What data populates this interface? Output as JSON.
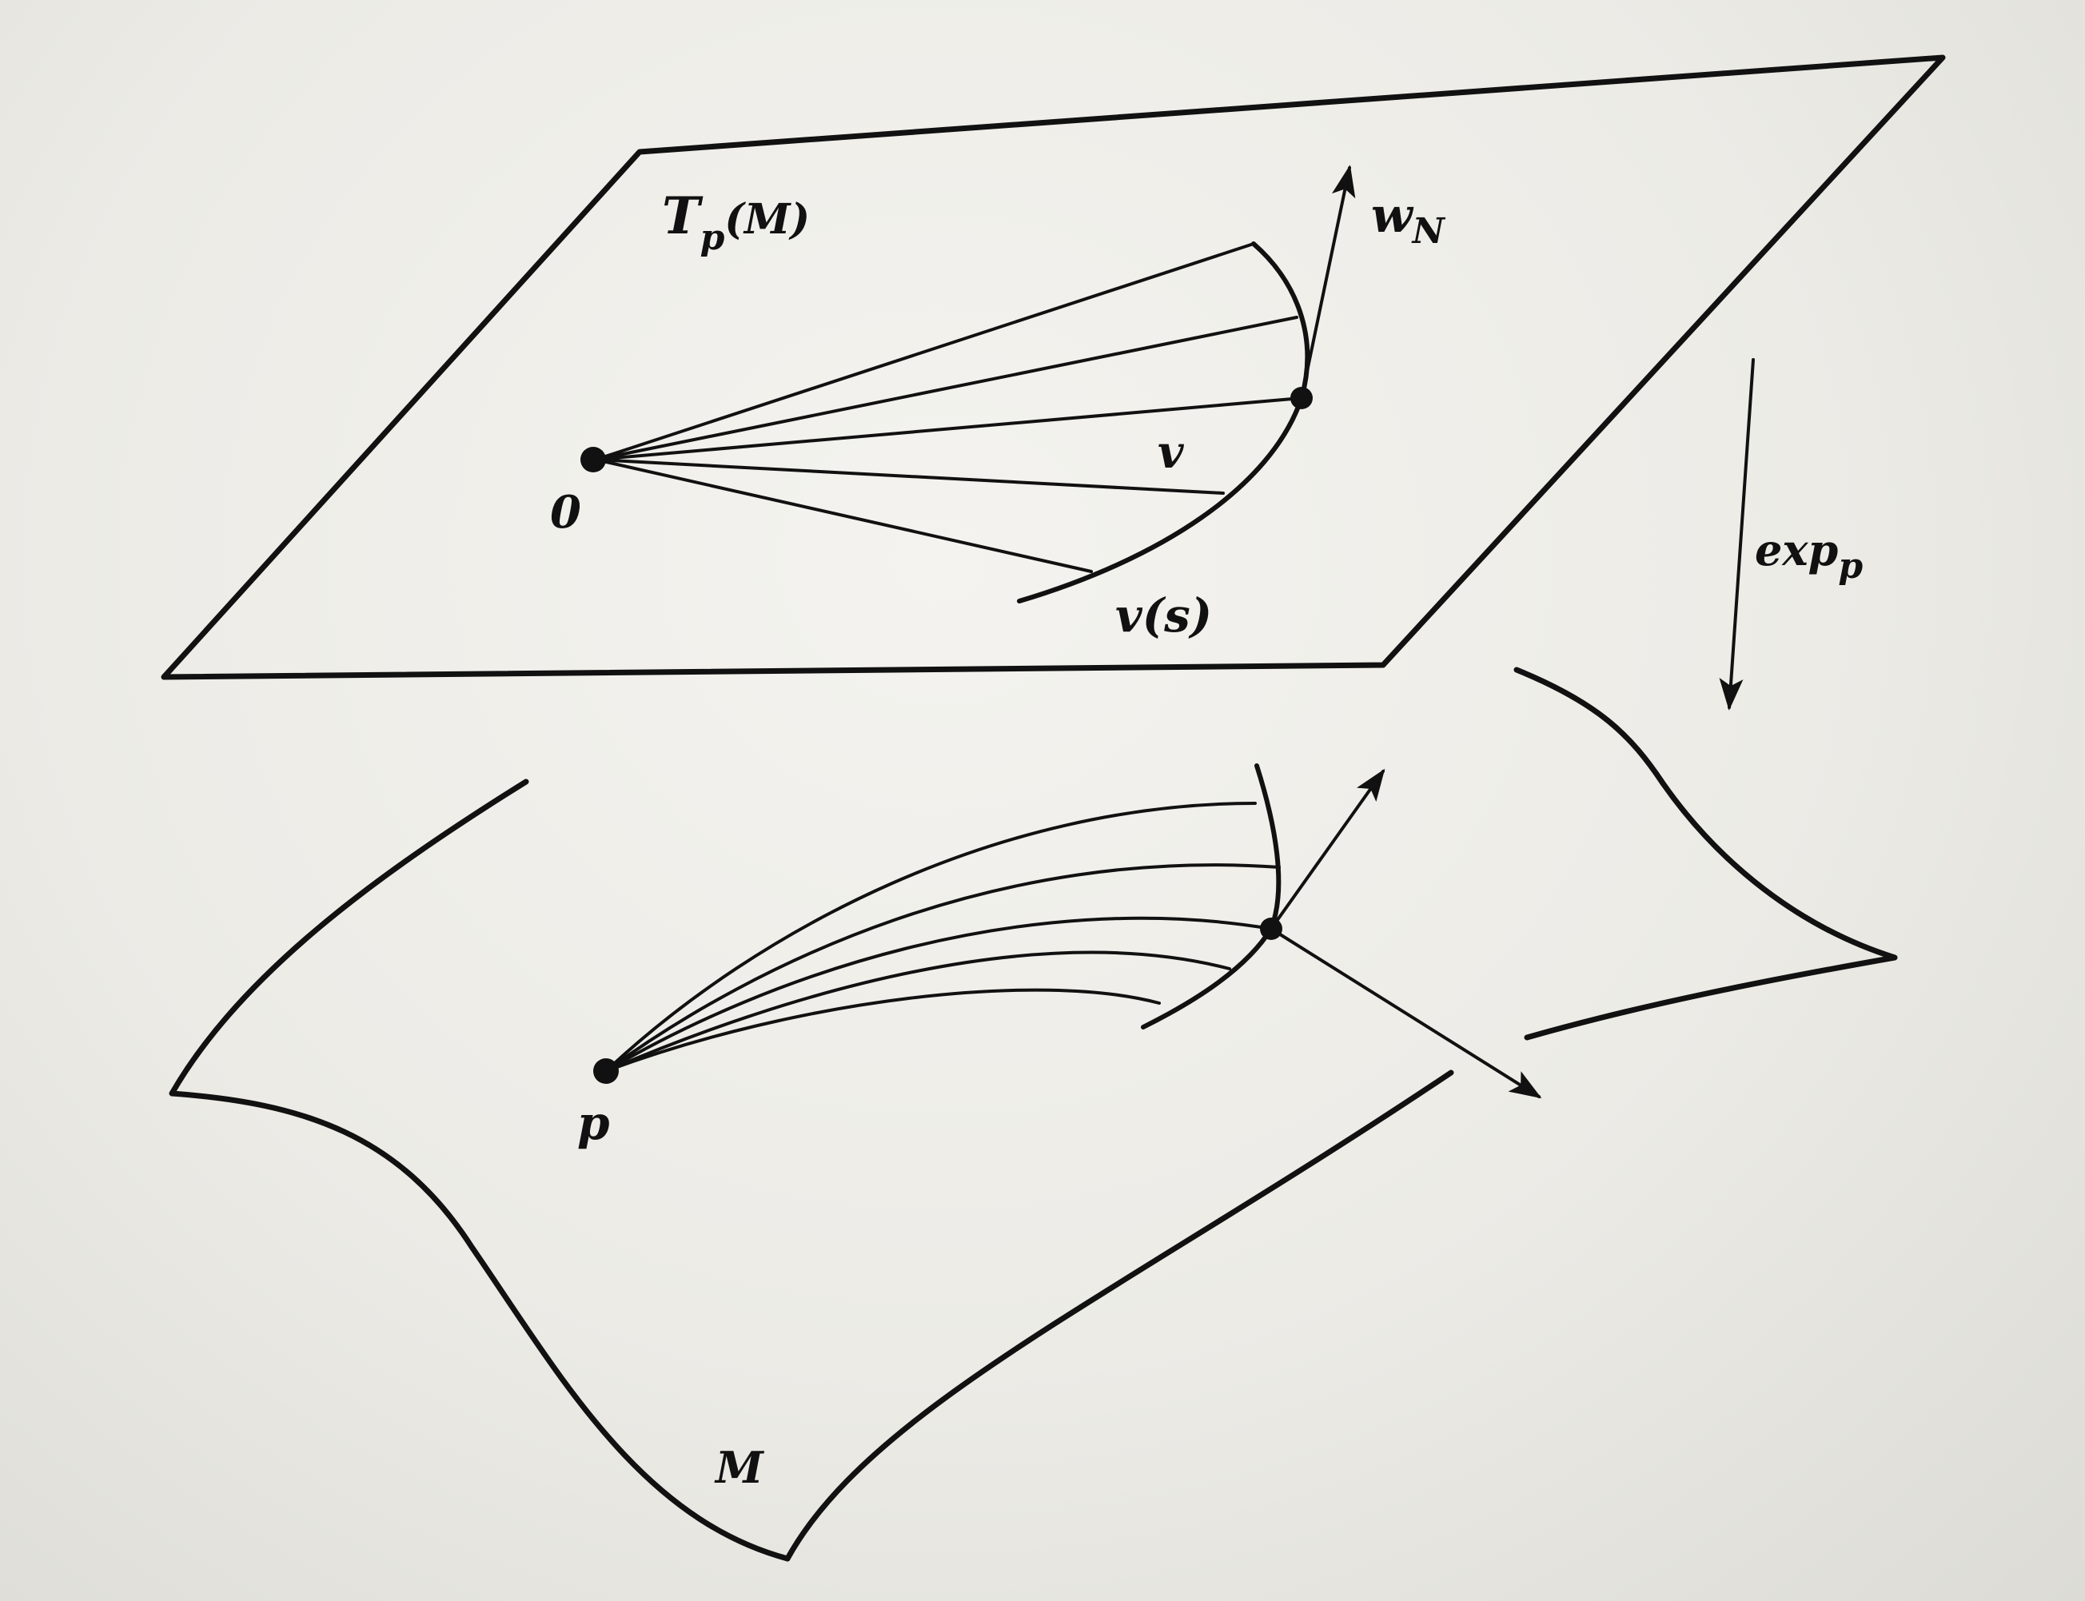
{
  "labels": {
    "tangent_space_T": "T",
    "tangent_space_sub": "p",
    "tangent_space_rest": "(M)",
    "normal_w": "w",
    "normal_sub": "N",
    "origin": "0",
    "vector_v": "v",
    "curve_vs": "v(s)",
    "exp_main": "exp",
    "exp_sub": "p",
    "point_p": "p",
    "manifold": "M"
  },
  "colors": {
    "ink": "#111111",
    "paper": "#ecebe6"
  }
}
